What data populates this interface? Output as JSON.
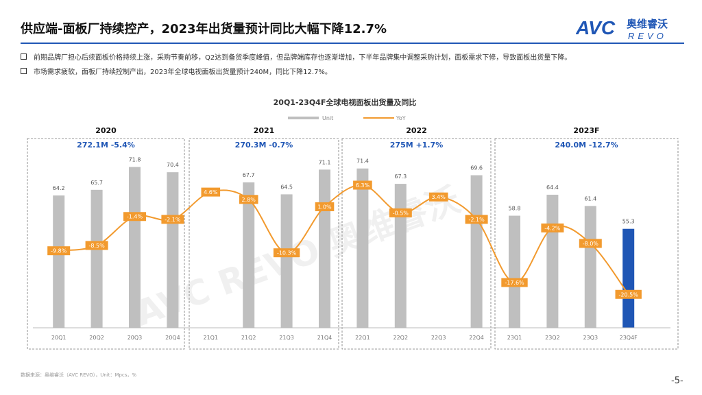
{
  "header": {
    "title": "供应端-面板厂持续控产，2023年出货量预计同比大幅下降12.7%",
    "logo_text": "AVC",
    "logo_cn": "奥维睿沃",
    "logo_en": "REVO"
  },
  "bullets": [
    "前期品牌厂担心后续面板价格持续上涨，采购节奏前移，Q2达到备货季度峰值，但品牌端库存也逐渐增加，下半年品牌集中调整采购计划，面板需求下修，导致面板出货量下降。",
    "市场需求疲软，面板厂持续控制产出，2023年全球电视面板出货量预计240M，同比下降12.7%。"
  ],
  "chart_data": {
    "type": "bar",
    "title": "20Q1-23Q4F全球电视面板出货量及同比",
    "legend": [
      "Unit",
      "YoY"
    ],
    "categories": [
      "20Q1",
      "20Q2",
      "20Q3",
      "20Q4",
      "21Q1",
      "21Q2",
      "21Q3",
      "21Q4",
      "22Q1",
      "22Q2",
      "22Q3",
      "22Q4",
      "23Q1",
      "23Q2",
      "23Q3",
      "23Q4F"
    ],
    "series": [
      {
        "name": "Unit",
        "type": "bar",
        "values": [
          64.2,
          65.7,
          71.8,
          70.4,
          null,
          67.7,
          64.5,
          71.1,
          71.4,
          67.3,
          null,
          69.6,
          58.8,
          64.4,
          61.4,
          55.3
        ]
      },
      {
        "name": "YoY",
        "type": "line",
        "values": [
          -9.8,
          -8.5,
          -1.4,
          -2.1,
          4.6,
          2.8,
          -10.3,
          1.0,
          6.3,
          -0.5,
          3.4,
          -2.1,
          -17.6,
          -4.2,
          -8.0,
          -20.5
        ]
      }
    ],
    "bar_labels": [
      "64.2",
      "65.7",
      "71.8",
      "70.4",
      "",
      "67.7",
      "64.5",
      "71.1",
      "71.4",
      "67.3",
      "",
      "69.6",
      "58.8",
      "64.4",
      "61.4",
      "55.3"
    ],
    "yoy_labels": [
      "-9.8%",
      "-8.5%",
      "-1.4%",
      "-2.1%",
      "4.6%",
      "2.8%",
      "-10.3%",
      "1.0%",
      "6.3%",
      "-0.5%",
      "3.4%",
      "-2.1%",
      "-17.6%",
      "-4.2%",
      "-8.0%",
      "-20.5%"
    ],
    "groups": [
      {
        "year": "2020",
        "summary": "272.1M -5.4%"
      },
      {
        "year": "2021",
        "summary": "270.3M -0.7%"
      },
      {
        "year": "2022",
        "summary": "275M +1.7%"
      },
      {
        "year": "2023F",
        "summary": "240.0M -12.7%"
      }
    ],
    "ylim_units": [
      45,
      75
    ],
    "ylim_yoy": [
      -25,
      10
    ],
    "watermark": "AVC REVO 奥维睿沃",
    "colors": {
      "bar": "#bfbfbf",
      "bar_highlight": "#1f56b5",
      "line": "#f29a2e",
      "label_box": "#f29a2e",
      "summary": "#1f56b5"
    }
  },
  "footer": {
    "source": "数据来源：奥维睿沃（AVC REVO），Unit：Mpcs，%",
    "page": "-5-"
  }
}
